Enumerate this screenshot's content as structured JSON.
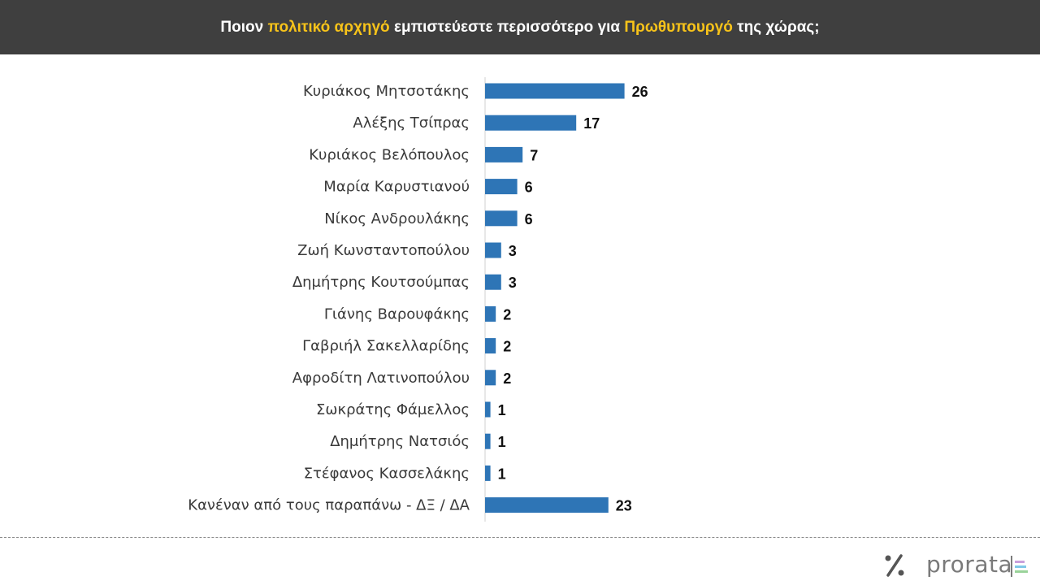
{
  "header": {
    "title_parts": [
      {
        "text": "Ποιον ",
        "highlight": false
      },
      {
        "text": "πολιτικό αρχηγό",
        "highlight": true
      },
      {
        "text": " εμπιστεύεστε περισσότερο για ",
        "highlight": false
      },
      {
        "text": "Πρωθυπουργό",
        "highlight": true
      },
      {
        "text": " της χώρας;",
        "highlight": false
      }
    ]
  },
  "chart_data": {
    "type": "bar",
    "orientation": "horizontal",
    "categories": [
      "Κυριάκος Μητσοτάκης",
      "Αλέξης Τσίπρας",
      "Κυριάκος Βελόπουλος",
      "Μαρία Καρυστιανού",
      "Νίκος Ανδρουλάκης",
      "Ζωή Κωνσταντοπούλου",
      "Δημήτρης Κουτσούμπας",
      "Γιάνης Βαρουφάκης",
      "Γαβριήλ Σακελλαρίδης",
      "Αφροδίτη Λατινοπούλου",
      "Σωκράτης Φάμελλος",
      "Δημήτρης Νατσιός",
      "Στέφανος Κασσελάκης",
      "Κανέναν από τους παραπάνω - ΔΞ / ΔΑ"
    ],
    "values": [
      26,
      17,
      7,
      6,
      6,
      3,
      3,
      2,
      2,
      2,
      1,
      1,
      1,
      23
    ],
    "value_labels": [
      "26",
      "17",
      "7",
      "6",
      "6",
      "3",
      "3",
      "2",
      "2",
      "2",
      "1",
      "1",
      "1",
      "23"
    ],
    "bar_color": "#2e75b6",
    "data_labels": true,
    "grid": false,
    "legend": "none"
  },
  "colors": {
    "header_bg": "#3f3f3f",
    "header_text": "#ffffff",
    "highlight": "#f7c31a",
    "bar": "#2e75b6"
  },
  "logo": {
    "icon": "percent-icon",
    "text": "prorata",
    "mark_icon": "prorata-bars-icon"
  }
}
